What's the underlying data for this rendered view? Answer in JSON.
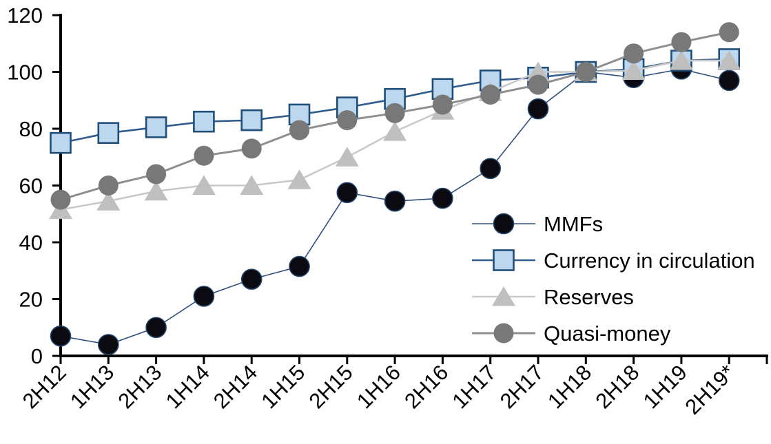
{
  "chart_data": {
    "type": "line",
    "title": "",
    "xlabel": "",
    "ylabel": "",
    "grid": false,
    "legend_position": "inside-right",
    "ylim": [
      0,
      120
    ],
    "yticks": [
      0,
      20,
      40,
      60,
      80,
      100,
      120
    ],
    "categories": [
      "2H12",
      "1H13",
      "2H13",
      "1H14",
      "2H14",
      "1H15",
      "2H15",
      "1H16",
      "2H16",
      "1H17",
      "2H17",
      "1H18",
      "2H18",
      "1H19",
      "2H19*"
    ],
    "series": [
      {
        "name": "MMFs",
        "marker": "circle",
        "marker_fill": "#0a0a10",
        "marker_stroke": "#24456b",
        "line_color": "#2f4e7c",
        "line_width": 1.6,
        "values": [
          7,
          4,
          10,
          21,
          27,
          31.5,
          57.5,
          54.5,
          55.5,
          66,
          87,
          100,
          98,
          101,
          97
        ]
      },
      {
        "name": "Currency in circulation",
        "marker": "square",
        "marker_fill": "#bdd7ee",
        "marker_stroke": "#1f4e79",
        "line_color": "#2e5b8c",
        "line_width": 2.6,
        "values": [
          75,
          78.5,
          80.5,
          82.5,
          83,
          85,
          87.5,
          90.5,
          94,
          97,
          98,
          100,
          101,
          104,
          104.5
        ]
      },
      {
        "name": "Reserves",
        "marker": "triangle",
        "marker_fill": "#bfbfbf",
        "marker_stroke": "none",
        "line_color": "#c9c9c9",
        "line_width": 2.6,
        "values": [
          51.5,
          54.5,
          58,
          60,
          60,
          62,
          70,
          79,
          86.5,
          93,
          100,
          100,
          100.5,
          104,
          104
        ]
      },
      {
        "name": "Quasi-money",
        "marker": "circle",
        "marker_fill": "#787878",
        "marker_stroke": "none",
        "line_color": "#8f8f8f",
        "line_width": 3,
        "values": [
          55,
          60,
          64,
          70.5,
          73,
          79.5,
          83,
          85.5,
          88.5,
          92,
          95.5,
          100,
          106.5,
          110.5,
          114
        ]
      }
    ],
    "axis_color": "#000000",
    "background_color": "#ffffff"
  }
}
